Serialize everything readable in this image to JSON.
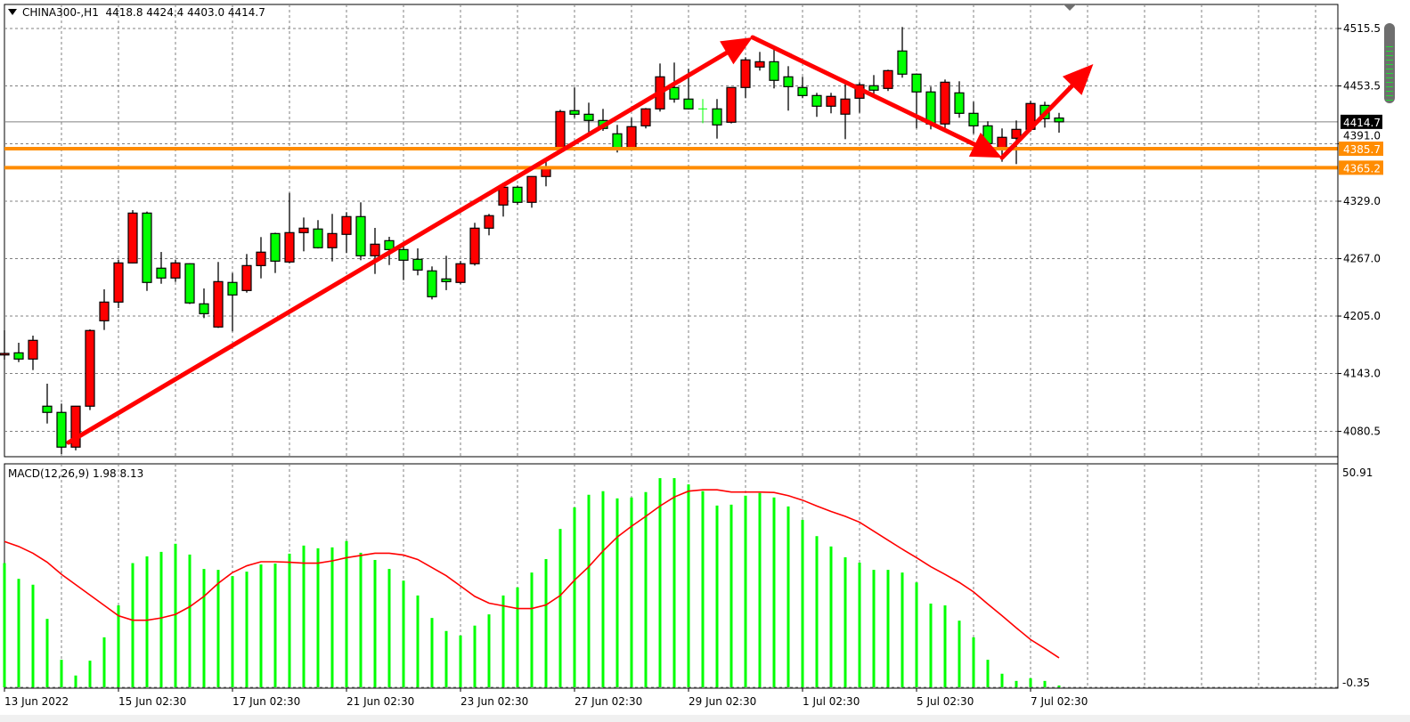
{
  "header": {
    "symbol": "CHINA300-,H1",
    "ohlc_text": "4418.8 4424.4 4403.0 4414.7"
  },
  "macd_label": {
    "name": "MACD(12,26,9)",
    "values": "1.98 8.13"
  },
  "colors": {
    "bull": "#FF0000",
    "bear": "#00FF00",
    "outline": "#000000",
    "level": "#FF8C00",
    "arrow": "#FF0000",
    "macd_hist": "#00FF00",
    "macd_signal": "#FF0000",
    "bid_line": "#808080",
    "grid": "#808080"
  },
  "chart_data": [
    {
      "type": "candlestick",
      "title": "CHINA300-,H1",
      "ylim": [
        4060,
        4530
      ],
      "grid": true,
      "y_ticks": [
        "4515.5",
        "4453.5",
        "4391.0",
        "4329.0",
        "4267.0",
        "4205.0",
        "4143.0",
        "4080.5"
      ],
      "x_ticks": [
        {
          "bar": 0,
          "label": "13 Jun 2022"
        },
        {
          "bar": 8,
          "label": "15 Jun 02:30"
        },
        {
          "bar": 16,
          "label": "17 Jun 02:30"
        },
        {
          "bar": 24,
          "label": "21 Jun 02:30"
        },
        {
          "bar": 32,
          "label": "23 Jun 02:30"
        },
        {
          "bar": 40,
          "label": "27 Jun 02:30"
        },
        {
          "bar": 48,
          "label": "29 Jun 02:30"
        },
        {
          "bar": 56,
          "label": "1 Jul 02:30"
        },
        {
          "bar": 64,
          "label": "5 Jul 02:30"
        },
        {
          "bar": 72,
          "label": "7 Jul 02:30"
        }
      ],
      "ohlc": [
        [
          4163,
          4189.7,
          4157.9,
          4164.7
        ],
        [
          4165.3,
          4176.2,
          4155.3,
          4158.6
        ],
        [
          4158.6,
          4183.9,
          4146.7,
          4178.8
        ],
        [
          4107.7,
          4132,
          4089,
          4101.0
        ],
        [
          4101,
          4110.5,
          4056,
          4063.5
        ],
        [
          4063.5,
          4108,
          4060,
          4107.7
        ],
        [
          4107.7,
          4190.6,
          4103.5,
          4189.4
        ],
        [
          4199.9,
          4233.9,
          4190,
          4220.1
        ],
        [
          4220.1,
          4265.9,
          4213.7,
          4262.4
        ],
        [
          4262.4,
          4319.4,
          4262,
          4316.2
        ],
        [
          4316.2,
          4317.8,
          4232.2,
          4241.3
        ],
        [
          4256.7,
          4274.2,
          4239.9,
          4246.1
        ],
        [
          4246.1,
          4265.9,
          4241.9,
          4262.4
        ],
        [
          4261.5,
          4262,
          4218,
          4219.2
        ],
        [
          4218.2,
          4234.8,
          4202.8,
          4207.6
        ],
        [
          4193.2,
          4263.4,
          4192.2,
          4242.2
        ],
        [
          4241.3,
          4251.5,
          4188.4,
          4227.8
        ],
        [
          4232.6,
          4272,
          4230.3,
          4259.5
        ],
        [
          4259.5,
          4290.3,
          4245.7,
          4274
        ],
        [
          4294.1,
          4295,
          4251.5,
          4264.3
        ],
        [
          4263.4,
          4338,
          4262,
          4295.1
        ],
        [
          4295.1,
          4311.4,
          4274.9,
          4299.9
        ],
        [
          4299,
          4308.6,
          4278,
          4278.8
        ],
        [
          4278.8,
          4315.3,
          4264,
          4294.1
        ],
        [
          4293.2,
          4317.2,
          4273,
          4312.4
        ],
        [
          4312.4,
          4327.8,
          4265.3,
          4270.1
        ],
        [
          4270.1,
          4300.2,
          4250.5,
          4282.6
        ],
        [
          4286.4,
          4290.6,
          4260.1,
          4276.8
        ],
        [
          4276.8,
          4282.6,
          4243.8,
          4265.3
        ],
        [
          4266.3,
          4278.1,
          4249,
          4254.7
        ],
        [
          4253.8,
          4258.6,
          4223,
          4225.9
        ],
        [
          4245.1,
          4270.1,
          4233,
          4242.2
        ],
        [
          4241.3,
          4264.4,
          4239.4,
          4261.5
        ],
        [
          4261.5,
          4305.7,
          4259.5,
          4299.9
        ],
        [
          4299.9,
          4315.3,
          4292.2,
          4313.4
        ],
        [
          4324.9,
          4349,
          4312.4,
          4344.1
        ],
        [
          4344.1,
          4346,
          4325,
          4327.8
        ],
        [
          4327.8,
          4356,
          4322,
          4355.7
        ],
        [
          4355.7,
          4374.9,
          4345.1,
          4364.3
        ],
        [
          4384.5,
          4427.7,
          4383,
          4425.8
        ],
        [
          4426.8,
          4451.8,
          4419.1,
          4422.9
        ],
        [
          4422.9,
          4435.4,
          4398.9,
          4416.2
        ],
        [
          4416.2,
          4428.7,
          4405,
          4407.6
        ],
        [
          4401.8,
          4411.4,
          4381.6,
          4386
        ],
        [
          4386,
          4419.1,
          4385,
          4409.5
        ],
        [
          4410.4,
          4429.6,
          4407.6,
          4428.7
        ],
        [
          4428.7,
          4477.7,
          4425.8,
          4463.3
        ],
        [
          4451.8,
          4478.7,
          4435.4,
          4439.3
        ],
        [
          4439.3,
          4472,
          4428,
          4428.7
        ],
        [
          4428.7,
          4439.3,
          4413.3,
          4428.7
        ],
        [
          4428.7,
          4439.3,
          4396.6,
          4411.4
        ],
        [
          4414.3,
          4452,
          4413,
          4451.8
        ],
        [
          4451.8,
          4484.5,
          4440.2,
          4481.6
        ],
        [
          4473.9,
          4490.2,
          4470,
          4479.6
        ],
        [
          4479.6,
          4494,
          4450.8,
          4459.5
        ],
        [
          4463.3,
          4474.8,
          4426.8,
          4452.7
        ],
        [
          4451.8,
          4463.3,
          4440.2,
          4443.1
        ],
        [
          4443.1,
          4446,
          4420.1,
          4431.6
        ],
        [
          4431.6,
          4446,
          4423.9,
          4442.2
        ],
        [
          4423,
          4459.5,
          4396,
          4439.3
        ],
        [
          4440.2,
          4457.5,
          4424.5,
          4454.7
        ],
        [
          4453.7,
          4465.2,
          4443.1,
          4448.9
        ],
        [
          4450.8,
          4471,
          4448,
          4470
        ],
        [
          4491.2,
          4517.1,
          4462.4,
          4466.2
        ],
        [
          4466.2,
          4467,
          4407.6,
          4447
        ],
        [
          4447,
          4452.7,
          4406.6,
          4412.4
        ],
        [
          4412.4,
          4460.4,
          4405.6,
          4457.5
        ],
        [
          4446,
          4458.5,
          4419.1,
          4423.9
        ],
        [
          4423.9,
          4436.4,
          4401.8,
          4410.4
        ],
        [
          4410.4,
          4415.3,
          4389,
          4391.2
        ],
        [
          4385.7,
          4407.6,
          4371.6,
          4398
        ],
        [
          4397,
          4416.2,
          4369.1,
          4406.6
        ],
        [
          4406.6,
          4437.4,
          4404,
          4434.5
        ],
        [
          4432.5,
          4436.4,
          4408.5,
          4418.1
        ],
        [
          4418.8,
          4424.4,
          4403.0,
          4414.7
        ]
      ],
      "bid_line": {
        "price": 4414.7,
        "label": "4414.7"
      },
      "levels": [
        {
          "price": 4385.7,
          "label": "4385.7"
        },
        {
          "price": 4365.2,
          "label": "4365.2"
        }
      ],
      "arrows": [
        {
          "from": {
            "bar": 4.5,
            "price": 4068.5
          },
          "to": {
            "bar": 52.5,
            "price": 4505.9
          }
        },
        {
          "from": {
            "bar": 52.5,
            "price": 4505.9
          },
          "to": {
            "bar": 70,
            "price": 4376
          }
        },
        {
          "from": {
            "bar": 70,
            "price": 4376
          },
          "to": {
            "bar": 76.4,
            "price": 4477
          }
        }
      ]
    },
    {
      "type": "bar+line",
      "title": "MACD(12,26,9)",
      "ylim": [
        -0.35,
        50.91
      ],
      "y_ticks": [
        "50.91",
        "-0.35"
      ],
      "series": [
        {
          "name": "MACD",
          "values": [
            29.2,
            25.7,
            24.4,
            16.8,
            7.7,
            4.2,
            7.5,
            12.7,
            19.8,
            29.2,
            30.7,
            31.7,
            33.5,
            31.1,
            27.9,
            27.7,
            26.3,
            27.3,
            28.9,
            29.1,
            31.3,
            33.1,
            32.5,
            32.7,
            34.1,
            31.5,
            29.9,
            27.9,
            25.3,
            22.0,
            17.0,
            14.1,
            13.1,
            15.3,
            17.8,
            22.0,
            23.8,
            27.1,
            30.1,
            36.8,
            41.6,
            44.4,
            45.2,
            43.6,
            43.8,
            45.0,
            48.1,
            48.1,
            46.7,
            45.2,
            42.0,
            42.2,
            44.2,
            44.8,
            43.8,
            41.8,
            38.8,
            35.2,
            32.9,
            30.5,
            29.3,
            27.7,
            27.7,
            27.1,
            24.9,
            20.2,
            19.8,
            16.4,
            12.7,
            7.7,
            4.6,
            3.0,
            3.6,
            3.0,
            1.98
          ]
        },
        {
          "name": "Signal",
          "values": [
            34.0,
            32.9,
            31.4,
            29.4,
            26.7,
            24.4,
            22.1,
            19.8,
            17.5,
            16.5,
            16.5,
            17.0,
            17.8,
            19.5,
            21.8,
            24.7,
            27.1,
            28.6,
            29.5,
            29.5,
            29.4,
            29.2,
            29.2,
            29.7,
            30.4,
            30.9,
            31.4,
            31.4,
            31.0,
            30.0,
            28.2,
            26.4,
            24.1,
            21.8,
            20.3,
            19.7,
            19.1,
            19.1,
            19.9,
            22.0,
            25.4,
            28.4,
            31.9,
            35.0,
            37.4,
            39.6,
            41.9,
            43.9,
            45.2,
            45.5,
            45.5,
            45.0,
            45.0,
            45.0,
            44.9,
            44.2,
            43.2,
            41.9,
            40.7,
            39.6,
            38.3,
            36.3,
            34.3,
            32.3,
            30.4,
            28.4,
            26.7,
            24.9,
            22.8,
            20.1,
            17.5,
            14.8,
            12.2,
            10.2,
            8.13
          ]
        }
      ]
    }
  ]
}
